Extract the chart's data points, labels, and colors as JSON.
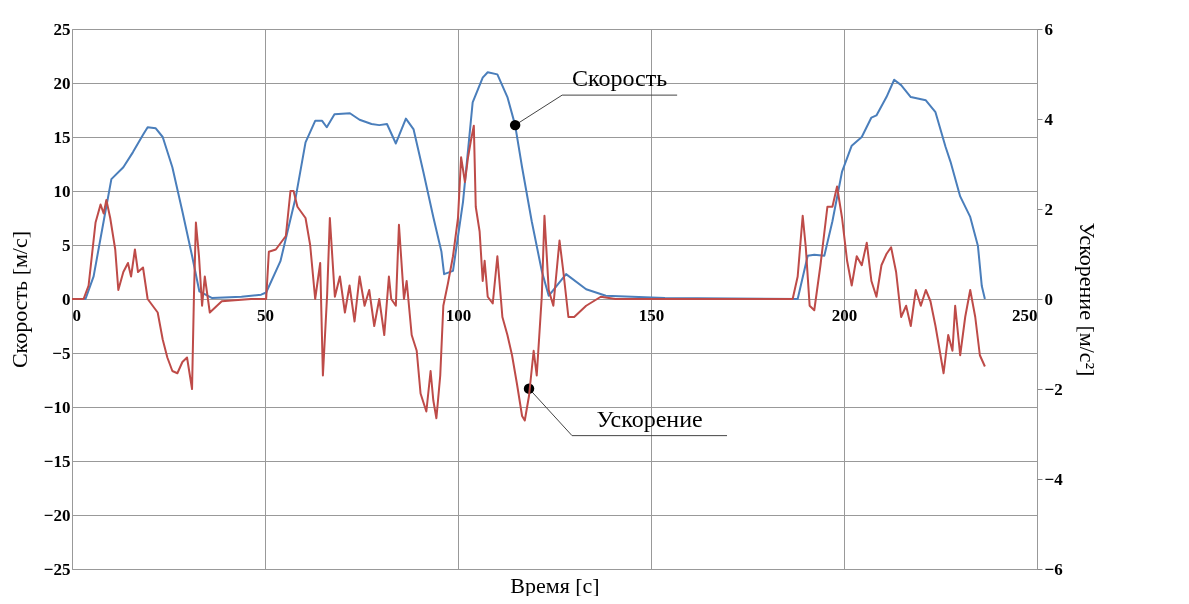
{
  "chart_data": {
    "type": "line",
    "xlabel": "Время [с]",
    "ylabel": "Скорость [м/с]",
    "y2label": "Ускорение [м/с²]",
    "xlim": [
      0,
      250
    ],
    "xticks": [
      0,
      50,
      100,
      150,
      200,
      250
    ],
    "ylim": [
      -25,
      25
    ],
    "yticks": [
      -25,
      -20,
      -15,
      -10,
      -5,
      0,
      5,
      10,
      15,
      20,
      25
    ],
    "y2lim": [
      -6,
      6
    ],
    "y2ticks": [
      -6,
      -4,
      -2,
      0,
      2,
      4,
      6
    ],
    "grid": true,
    "series": [
      {
        "color": "#4a7ebb",
        "x": [
          0,
          3.5,
          5.6,
          8.2,
          10.2,
          13.3,
          15.8,
          18.4,
          19.6,
          21.7,
          23.5,
          26,
          28.6,
          31.1,
          33,
          36.2,
          43.9,
          49,
          50.3,
          54,
          58,
          60.5,
          63,
          64.8,
          66,
          68,
          72,
          74.5,
          77.6,
          79.6,
          81.6,
          83.9,
          86.5,
          88.5,
          91,
          93.6,
          95.7,
          96.4,
          98.7,
          101.3,
          103.8,
          106.4,
          107.7,
          110.2,
          112.8,
          114.8,
          116.6,
          119.1,
          121.7,
          123.5,
          125.5,
          128,
          133.2,
          138.3,
          153.6,
          188,
          190.6,
          192.3,
          194.9,
          197,
          199.5,
          202,
          204.6,
          207.1,
          208.4,
          211,
          213,
          214.8,
          217.3,
          221.2,
          223.7,
          226.3,
          227.6,
          230.1,
          232.7,
          234.7,
          235.7,
          236.5
        ],
        "values": [
          0,
          0,
          2.1,
          7.2,
          11.1,
          12.2,
          13.6,
          15.2,
          15.9,
          15.8,
          15.0,
          12.2,
          8.1,
          4.0,
          0.7,
          0.1,
          0.2,
          0.4,
          0.6,
          3.5,
          9.5,
          14.5,
          16.5,
          16.5,
          15.9,
          17.1,
          17.2,
          16.6,
          16.2,
          16.1,
          16.2,
          14.4,
          16.7,
          15.7,
          11.8,
          7.6,
          4.4,
          2.3,
          2.6,
          9.0,
          18.2,
          20.5,
          21.0,
          20.8,
          18.7,
          16.1,
          12.2,
          7.2,
          2.6,
          0.3,
          1.2,
          2.3,
          0.9,
          0.3,
          0.1,
          0,
          4.0,
          4.1,
          4.0,
          7.2,
          11.8,
          14.2,
          15.0,
          16.8,
          17.0,
          18.7,
          20.3,
          19.8,
          18.7,
          18.4,
          17.3,
          14.1,
          12.7,
          9.5,
          7.6,
          4.9,
          1.2,
          0
        ]
      },
      {
        "color": "#be4b48",
        "axis": "y2",
        "x": [
          0,
          3,
          4.3,
          6.1,
          7.4,
          8.2,
          8.9,
          9.9,
          11.2,
          12,
          13.3,
          14.5,
          15.3,
          16.3,
          17.1,
          18.4,
          19.6,
          20.9,
          22.2,
          23.5,
          24.7,
          26,
          27.3,
          28.6,
          29.8,
          31.1,
          31.6,
          32.1,
          32.9,
          33.7,
          34.4,
          35.7,
          38.8,
          46.4,
          50.3,
          51,
          52.8,
          54.1,
          55.4,
          56.6,
          57.4,
          58.4,
          60.5,
          61.7,
          63,
          64.3,
          65,
          66.1,
          66.8,
          68.1,
          69.4,
          70.7,
          71.9,
          73.2,
          74.5,
          75.8,
          77,
          78.3,
          79.6,
          80.9,
          82.1,
          82.7,
          83.9,
          84.7,
          86,
          86.7,
          88,
          89.3,
          90.3,
          91.8,
          92.9,
          93.6,
          94.4,
          95.4,
          96.2,
          97.4,
          98.7,
          100,
          100.8,
          101.8,
          102.6,
          103.3,
          104.1,
          104.6,
          105.6,
          106.4,
          106.9,
          107.7,
          109,
          110.2,
          111.5,
          112.8,
          114,
          115.3,
          116.6,
          117.3,
          118.4,
          119.6,
          120.4,
          121.7,
          122.4,
          123.5,
          124.7,
          126.3,
          127.3,
          128.6,
          130.1,
          133.2,
          137,
          140.8,
          186.7,
          188,
          189.3,
          190.1,
          191.1,
          192.3,
          193.9,
          195.7,
          197,
          198.2,
          199.5,
          200.8,
          202,
          203.3,
          204.6,
          205.9,
          207.1,
          208.4,
          209.7,
          211,
          212.2,
          213.5,
          214.8,
          216.1,
          217.3,
          218.6,
          219.9,
          221.2,
          222.4,
          223.7,
          225,
          225.8,
          227,
          228.1,
          228.8,
          230.1,
          231.4,
          232.7,
          234,
          235.2,
          236.5
        ],
        "values": [
          0,
          0,
          0.3,
          1.7,
          2.1,
          1.9,
          2.2,
          1.8,
          1.1,
          0.2,
          0.6,
          0.8,
          0.5,
          1.1,
          0.6,
          0.7,
          0,
          -0.15,
          -0.3,
          -0.9,
          -1.3,
          -1.6,
          -1.65,
          -1.4,
          -1.3,
          -2.0,
          0.1,
          1.7,
          0.95,
          -0.15,
          0.5,
          -0.3,
          -0.05,
          0,
          0,
          1.05,
          1.1,
          1.25,
          1.4,
          2.4,
          2.4,
          2.05,
          1.8,
          1.2,
          0,
          0.8,
          -1.7,
          0.1,
          1.8,
          0.05,
          0.5,
          -0.3,
          0.3,
          -0.5,
          0.5,
          -0.15,
          0.2,
          -0.6,
          0,
          -0.8,
          0.5,
          0,
          -0.15,
          1.65,
          0,
          0.4,
          -0.8,
          -1.15,
          -2.1,
          -2.5,
          -1.6,
          -2.25,
          -2.65,
          -1.7,
          -0.15,
          0.35,
          0.95,
          1.8,
          3.15,
          2.6,
          3.15,
          3.5,
          3.85,
          2.05,
          1.5,
          0.4,
          0.85,
          0.05,
          -0.1,
          0.95,
          -0.4,
          -0.8,
          -1.25,
          -1.9,
          -2.6,
          -2.7,
          -2.15,
          -1.15,
          -1.7,
          0.05,
          1.85,
          0.2,
          -0.15,
          1.3,
          0.6,
          -0.4,
          -0.4,
          -0.15,
          0.05,
          0,
          0,
          0.5,
          1.85,
          1.15,
          -0.15,
          -0.25,
          0.75,
          2.05,
          2.05,
          2.5,
          1.8,
          0.85,
          0.3,
          0.95,
          0.75,
          1.25,
          0.4,
          0.05,
          0.75,
          1.0,
          1.15,
          0.6,
          -0.4,
          -0.15,
          -0.6,
          0.2,
          -0.15,
          0.2,
          -0.05,
          -0.6,
          -1.25,
          -1.65,
          -0.8,
          -1.15,
          -0.15,
          -1.25,
          -0.4,
          0.2,
          -0.4,
          -1.25,
          -1.5
        ]
      }
    ],
    "annotations": [
      {
        "text": "Скорость",
        "x": 114.8,
        "y": 16.1
      },
      {
        "text": "Ускорение",
        "x": 118.4,
        "y": -8.3
      }
    ]
  }
}
